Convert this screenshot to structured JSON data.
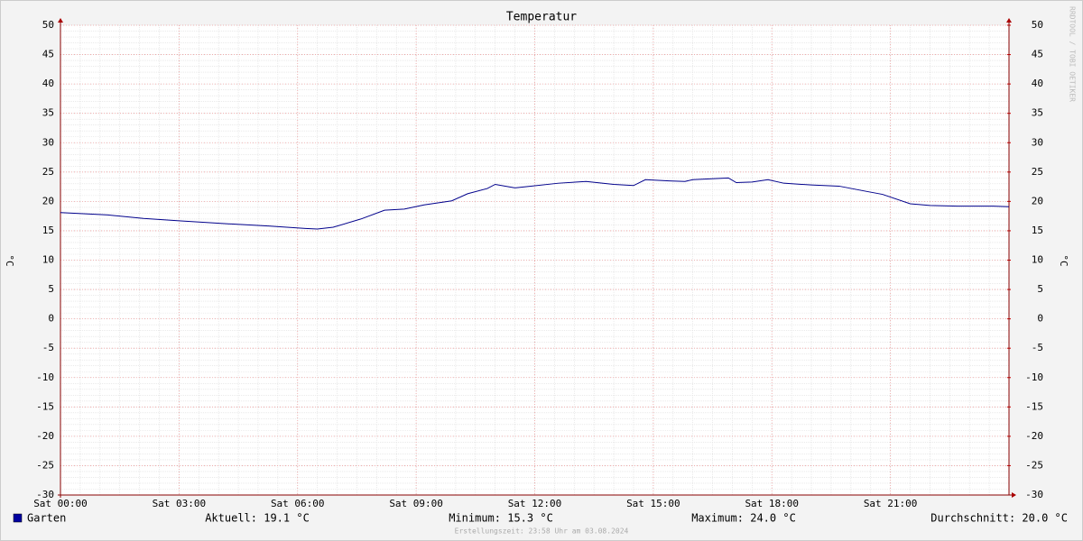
{
  "chart_data": {
    "type": "line",
    "title": "Temperatur",
    "y_label": "°C",
    "y2_label": "°C",
    "watermark": "RRDTOOL / TOBI OETIKER",
    "x": [
      0,
      1.2,
      2.1,
      3,
      4.2,
      5.3,
      6.2,
      6.5,
      6.9,
      7.6,
      8.2,
      8.7,
      9.2,
      9.9,
      10.3,
      10.8,
      11,
      11.5,
      11.9,
      12.6,
      13.3,
      14,
      14.5,
      14.8,
      15.4,
      15.8,
      16,
      16.6,
      16.9,
      17.1,
      17.5,
      17.9,
      18.3,
      19,
      19.7,
      20.4,
      20.8,
      21.5,
      22,
      22.7,
      23.6,
      24
    ],
    "series": [
      {
        "name": "Garten",
        "color": "#00008b",
        "values": [
          18.1,
          17.7,
          17.1,
          16.7,
          16.2,
          15.8,
          15.4,
          15.3,
          15.6,
          17.0,
          18.5,
          18.7,
          19.4,
          20.1,
          21.3,
          22.2,
          22.9,
          22.3,
          22.6,
          23.1,
          23.4,
          22.9,
          22.7,
          23.7,
          23.5,
          23.4,
          23.7,
          23.9,
          24.0,
          23.2,
          23.3,
          23.7,
          23.1,
          22.8,
          22.6,
          21.7,
          21.2,
          19.6,
          19.3,
          19.2,
          19.2,
          19.1
        ]
      }
    ],
    "xlim": [
      0,
      24
    ],
    "xticks": [
      {
        "value": 0,
        "label": "Sat 00:00"
      },
      {
        "value": 3,
        "label": "Sat 03:00"
      },
      {
        "value": 6,
        "label": "Sat 06:00"
      },
      {
        "value": 9,
        "label": "Sat 09:00"
      },
      {
        "value": 12,
        "label": "Sat 12:00"
      },
      {
        "value": 15,
        "label": "Sat 15:00"
      },
      {
        "value": 18,
        "label": "Sat 18:00"
      },
      {
        "value": 21,
        "label": "Sat 21:00"
      }
    ],
    "ylim": [
      -30,
      50
    ],
    "yticks": [
      -30,
      -25,
      -20,
      -15,
      -10,
      -5,
      0,
      5,
      10,
      15,
      20,
      25,
      30,
      35,
      40,
      45,
      50
    ],
    "y2lim": [
      -30,
      50
    ],
    "y2ticks": [
      -30,
      -25,
      -20,
      -15,
      -10,
      -5,
      0,
      5,
      10,
      15,
      20,
      25,
      30,
      35,
      40,
      45,
      50
    ],
    "grid": true,
    "legend_color": "#0000a0",
    "stats": [
      "Aktuell: 19.1 °C",
      "Minimum: 15.3 °C",
      "Maximum: 24.0 °C",
      "Durchschnitt: 20.0 °C"
    ],
    "footer": "Erstellungszeit: 23:58 Uhr am 03.08.2024"
  }
}
